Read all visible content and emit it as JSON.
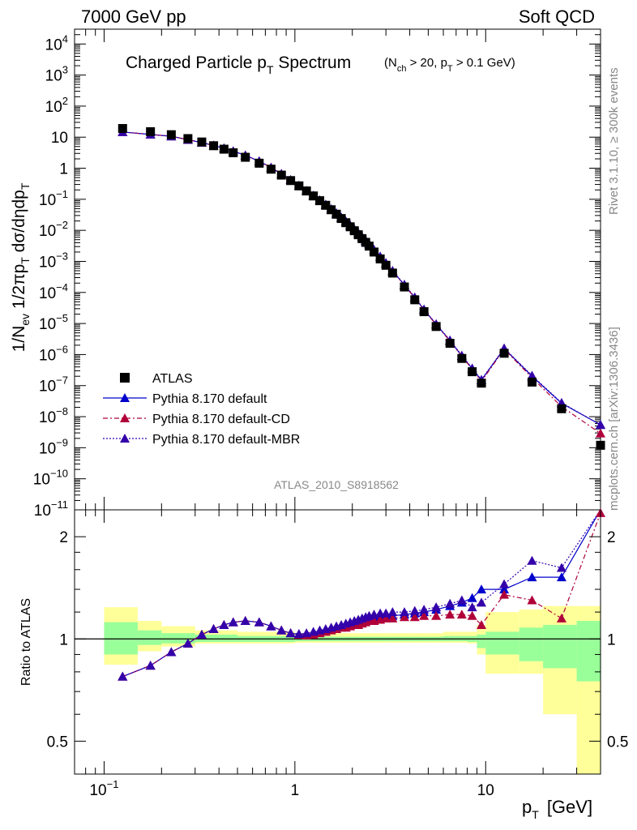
{
  "header": {
    "left": "7000 GeV pp",
    "right": "Soft QCD"
  },
  "side_labels": {
    "rivet": "Rivet 3.1.10, ≥ 300k events",
    "mcplots": "mcplots.cern.ch [arXiv:1306.3436]"
  },
  "analysis_id": "ATLAS_2010_S8918562",
  "chart_data": [
    {
      "type": "scatter",
      "title": "Charged Particle p",
      "title_sub": "T",
      "title_rest": " Spectrum",
      "title_cond_a": "(N",
      "title_cond_a_sub": "ch",
      "title_cond_b": " > 20, p",
      "title_cond_b_sub": "T",
      "title_cond_c": " > 0.1 GeV)",
      "ylabel_parts": [
        "1/N",
        "ev",
        " 1/2πp",
        "T",
        " dσ/dηdp",
        "T"
      ],
      "xscale": "log",
      "yscale": "log",
      "xlim": [
        0.07,
        40
      ],
      "ylim": [
        1e-11,
        30000
      ],
      "ytick_exponents": [
        4,
        3,
        2,
        1,
        0,
        -1,
        -2,
        -3,
        -4,
        -5,
        -6,
        -7,
        -8,
        -9,
        -10,
        -11
      ],
      "ytick_plain": {
        "1": "10",
        "0": "1"
      },
      "legend_position": "lower-left",
      "x": [
        0.125,
        0.175,
        0.225,
        0.275,
        0.325,
        0.375,
        0.425,
        0.475,
        0.55,
        0.65,
        0.75,
        0.85,
        0.95,
        1.05,
        1.15,
        1.25,
        1.35,
        1.45,
        1.55,
        1.65,
        1.75,
        1.85,
        1.95,
        2.05,
        2.15,
        2.25,
        2.35,
        2.45,
        2.6,
        2.8,
        3.0,
        3.25,
        3.75,
        4.25,
        4.75,
        5.5,
        6.5,
        7.5,
        8.5,
        9.5,
        12.5,
        17.5,
        25.0,
        40.0
      ],
      "series": [
        {
          "name": "ATLAS",
          "color": "#000000",
          "marker": "square",
          "values": [
            19.0,
            15.0,
            12.0,
            9.0,
            7.0,
            5.3,
            4.1,
            3.15,
            2.25,
            1.45,
            0.93,
            0.6,
            0.4,
            0.27,
            0.185,
            0.128,
            0.09,
            0.064,
            0.046,
            0.033,
            0.024,
            0.0176,
            0.013,
            0.0097,
            0.0072,
            0.0054,
            0.0041,
            0.0031,
            0.002,
            0.0012,
            0.00075,
            0.00042,
            0.00015,
            5.8e-05,
            2.4e-05,
            8e-06,
            2.3e-06,
            7.5e-07,
            2.8e-07,
            1.2e-07,
            1.1e-06,
            1.3e-07,
            1.8e-08,
            1.2e-09
          ]
        },
        {
          "name": "Pythia 8.170 default",
          "color": "#0000cc",
          "marker": "triangle",
          "line": "solid",
          "values": [
            14.7,
            12.2,
            10.7,
            8.3,
            6.7,
            5.4,
            4.4,
            3.55,
            2.6,
            1.68,
            1.05,
            0.66,
            0.42,
            0.275,
            0.188,
            0.131,
            0.093,
            0.067,
            0.048,
            0.035,
            0.026,
            0.0193,
            0.0144,
            0.0108,
            0.0081,
            0.0061,
            0.0047,
            0.0036,
            0.0023,
            0.0014,
            0.00087,
            0.00049,
            0.000175,
            6.8e-05,
            2.8e-05,
            9.4e-06,
            2.8e-06,
            9e-07,
            3.5e-07,
            1.5e-07,
            1.55e-06,
            2e-07,
            2.7e-08,
            5.5e-09
          ]
        },
        {
          "name": "Pythia 8.170 default-CD",
          "color": "#b0003a",
          "marker": "triangle",
          "line": "dashdot",
          "values": [
            14.7,
            12.2,
            10.7,
            8.3,
            6.7,
            5.4,
            4.4,
            3.55,
            2.6,
            1.68,
            1.05,
            0.66,
            0.42,
            0.275,
            0.188,
            0.131,
            0.092,
            0.066,
            0.047,
            0.034,
            0.025,
            0.0188,
            0.014,
            0.0105,
            0.0079,
            0.006,
            0.0046,
            0.0035,
            0.0023,
            0.0014,
            0.00086,
            0.00048,
            0.00017,
            6.7e-05,
            2.7e-05,
            9.2e-06,
            2.7e-06,
            8.8e-07,
            3.4e-07,
            1.35e-07,
            1.5e-06,
            1.8e-07,
            2.1e-08,
            2.9e-09
          ]
        },
        {
          "name": "Pythia 8.170 default-MBR",
          "color": "#3300aa",
          "marker": "triangle",
          "line": "dotted",
          "values": [
            14.7,
            12.2,
            10.7,
            8.3,
            6.7,
            5.4,
            4.4,
            3.55,
            2.6,
            1.68,
            1.05,
            0.66,
            0.42,
            0.275,
            0.189,
            0.132,
            0.094,
            0.068,
            0.049,
            0.036,
            0.026,
            0.0196,
            0.0146,
            0.011,
            0.0083,
            0.0063,
            0.0048,
            0.0037,
            0.0024,
            0.00145,
            0.0009,
            0.0005,
            0.00018,
            7e-05,
            2.85e-05,
            9.6e-06,
            2.9e-06,
            9.3e-07,
            3.6e-07,
            1.55e-07,
            1.6e-06,
            2.1e-07,
            2.8e-08,
            5.4e-09
          ]
        }
      ]
    },
    {
      "type": "scatter",
      "ylabel": "Ratio to ATLAS",
      "xlabel": "p",
      "xlabel_sub": "T",
      "xlabel_unit": "[GeV]",
      "xscale": "log",
      "yscale": "log",
      "xlim": [
        0.07,
        40
      ],
      "ylim": [
        0.4,
        2.4
      ],
      "yticks_major": [
        "0.5",
        "1",
        "2"
      ],
      "yticks_major_values": [
        0.5,
        1,
        2
      ],
      "xticks": [
        "10",
        "1",
        "10"
      ],
      "xticks_exp": [
        "−1",
        "",
        ""
      ],
      "xticks_values": [
        0.1,
        1,
        10
      ],
      "uncertainty_bands": {
        "edges": [
          0.1,
          0.15,
          0.2,
          0.3,
          0.5,
          1.0,
          2.0,
          3.0,
          4.0,
          5.0,
          6.0,
          7.0,
          8.0,
          9.0,
          10.0,
          15.0,
          20.0,
          30.0,
          50.0
        ],
        "inner": [
          [
            0.9,
            1.12
          ],
          [
            0.96,
            1.06
          ],
          [
            0.97,
            1.04
          ],
          [
            0.98,
            1.03
          ],
          [
            0.98,
            1.02
          ],
          [
            0.985,
            1.015
          ],
          [
            0.985,
            1.015
          ],
          [
            0.985,
            1.015
          ],
          [
            0.985,
            1.015
          ],
          [
            0.985,
            1.015
          ],
          [
            0.985,
            1.02
          ],
          [
            0.985,
            1.02
          ],
          [
            0.98,
            1.02
          ],
          [
            0.94,
            1.03
          ],
          [
            0.9,
            1.05
          ],
          [
            0.86,
            1.08
          ],
          [
            0.82,
            1.1
          ],
          [
            0.75,
            1.13
          ]
        ],
        "outer": [
          [
            0.84,
            1.24
          ],
          [
            0.92,
            1.13
          ],
          [
            0.95,
            1.09
          ],
          [
            0.97,
            1.06
          ],
          [
            0.97,
            1.05
          ],
          [
            0.975,
            1.04
          ],
          [
            0.975,
            1.04
          ],
          [
            0.975,
            1.04
          ],
          [
            0.975,
            1.04
          ],
          [
            0.975,
            1.04
          ],
          [
            0.975,
            1.05
          ],
          [
            0.975,
            1.05
          ],
          [
            0.97,
            1.05
          ],
          [
            0.9,
            1.1
          ],
          [
            0.79,
            1.2
          ],
          [
            0.79,
            1.22
          ],
          [
            0.6,
            1.25
          ],
          [
            0.35,
            1.25
          ]
        ],
        "inner_color": "#99ff99",
        "outer_color": "#ffff99"
      },
      "series": [
        {
          "name": "Pythia 8.170 default",
          "color": "#0000cc",
          "line": "solid",
          "values": [
            0.775,
            0.835,
            0.915,
            0.97,
            1.03,
            1.07,
            1.1,
            1.12,
            1.13,
            1.12,
            1.09,
            1.06,
            1.04,
            1.03,
            1.03,
            1.04,
            1.05,
            1.06,
            1.07,
            1.08,
            1.09,
            1.1,
            1.11,
            1.12,
            1.13,
            1.14,
            1.15,
            1.16,
            1.16,
            1.17,
            1.17,
            1.17,
            1.18,
            1.19,
            1.2,
            1.22,
            1.25,
            1.28,
            1.32,
            1.4,
            1.4,
            1.52,
            1.52,
            2.5
          ]
        },
        {
          "name": "Pythia 8.170 default-CD",
          "color": "#b0003a",
          "line": "dashdot",
          "values": [
            0.775,
            0.835,
            0.915,
            0.97,
            1.03,
            1.07,
            1.1,
            1.12,
            1.13,
            1.12,
            1.09,
            1.06,
            1.04,
            1.03,
            1.025,
            1.03,
            1.04,
            1.05,
            1.06,
            1.07,
            1.08,
            1.08,
            1.09,
            1.1,
            1.1,
            1.11,
            1.12,
            1.13,
            1.13,
            1.14,
            1.15,
            1.15,
            1.16,
            1.16,
            1.17,
            1.17,
            1.18,
            1.18,
            1.17,
            1.1,
            1.35,
            1.3,
            1.15,
            2.35
          ]
        },
        {
          "name": "Pythia 8.170 default-MBR",
          "color": "#3300aa",
          "line": "dotted",
          "values": [
            0.775,
            0.835,
            0.915,
            0.97,
            1.03,
            1.07,
            1.1,
            1.12,
            1.13,
            1.12,
            1.09,
            1.06,
            1.04,
            1.035,
            1.04,
            1.05,
            1.06,
            1.07,
            1.08,
            1.09,
            1.1,
            1.11,
            1.12,
            1.13,
            1.14,
            1.15,
            1.16,
            1.17,
            1.18,
            1.19,
            1.19,
            1.2,
            1.2,
            1.21,
            1.22,
            1.24,
            1.27,
            1.3,
            1.24,
            1.28,
            1.45,
            1.7,
            1.62,
            2.6
          ]
        }
      ]
    }
  ]
}
